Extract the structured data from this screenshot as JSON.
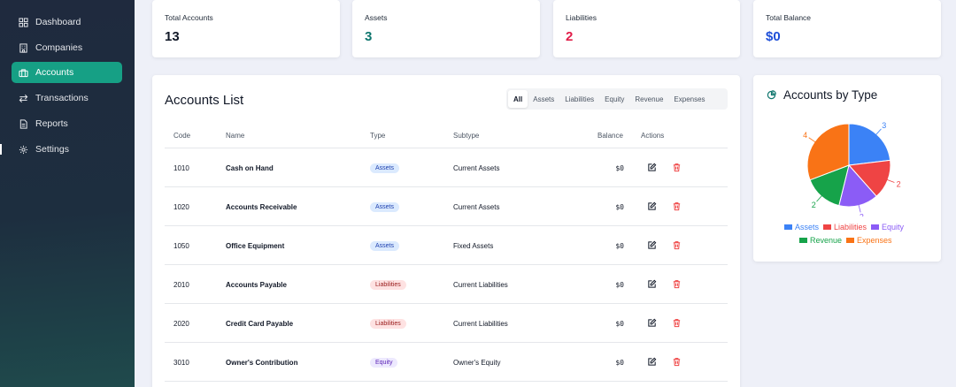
{
  "sidebar": {
    "items": [
      {
        "label": "Dashboard",
        "icon": "grid-icon"
      },
      {
        "label": "Companies",
        "icon": "building-icon"
      },
      {
        "label": "Accounts",
        "icon": "briefcase-icon",
        "active": true
      },
      {
        "label": "Transactions",
        "icon": "swap-icon"
      },
      {
        "label": "Reports",
        "icon": "document-icon"
      },
      {
        "label": "Settings",
        "icon": "gear-icon"
      }
    ]
  },
  "stats": [
    {
      "label": "Total Accounts",
      "value": "13",
      "color": "#111827"
    },
    {
      "label": "Assets",
      "value": "3",
      "color": "#0f766e"
    },
    {
      "label": "Liabilities",
      "value": "2",
      "color": "#e11d48"
    },
    {
      "label": "Total Balance",
      "value": "$0",
      "color": "#1d4ed8"
    }
  ],
  "accounts_list": {
    "title": "Accounts List",
    "filters": [
      "All",
      "Assets",
      "Liabilities",
      "Equity",
      "Revenue",
      "Expenses"
    ],
    "active_filter": "All",
    "columns": {
      "code": "Code",
      "name": "Name",
      "type": "Type",
      "subtype": "Subtype",
      "balance": "Balance",
      "actions": "Actions"
    },
    "rows": [
      {
        "code": "1010",
        "name": "Cash on Hand",
        "type": "Assets",
        "subtype": "Current Assets",
        "balance": "$0"
      },
      {
        "code": "1020",
        "name": "Accounts Receivable",
        "type": "Assets",
        "subtype": "Current Assets",
        "balance": "$0"
      },
      {
        "code": "1050",
        "name": "Office Equipment",
        "type": "Assets",
        "subtype": "Fixed Assets",
        "balance": "$0"
      },
      {
        "code": "2010",
        "name": "Accounts Payable",
        "type": "Liabilities",
        "subtype": "Current Liabilities",
        "balance": "$0"
      },
      {
        "code": "2020",
        "name": "Credit Card Payable",
        "type": "Liabilities",
        "subtype": "Current Liabilities",
        "balance": "$0"
      },
      {
        "code": "3010",
        "name": "Owner's Contribution",
        "type": "Equity",
        "subtype": "Owner's Equity",
        "balance": "$0"
      }
    ]
  },
  "chart_data": {
    "type": "pie",
    "title": "Accounts by Type",
    "categories": [
      "Assets",
      "Liabilities",
      "Equity",
      "Revenue",
      "Expenses"
    ],
    "values": [
      3,
      2,
      2,
      2,
      4
    ],
    "colors": [
      "#3b82f6",
      "#ef4444",
      "#8b5cf6",
      "#16a34a",
      "#f97316"
    ],
    "legend": "bottom"
  }
}
